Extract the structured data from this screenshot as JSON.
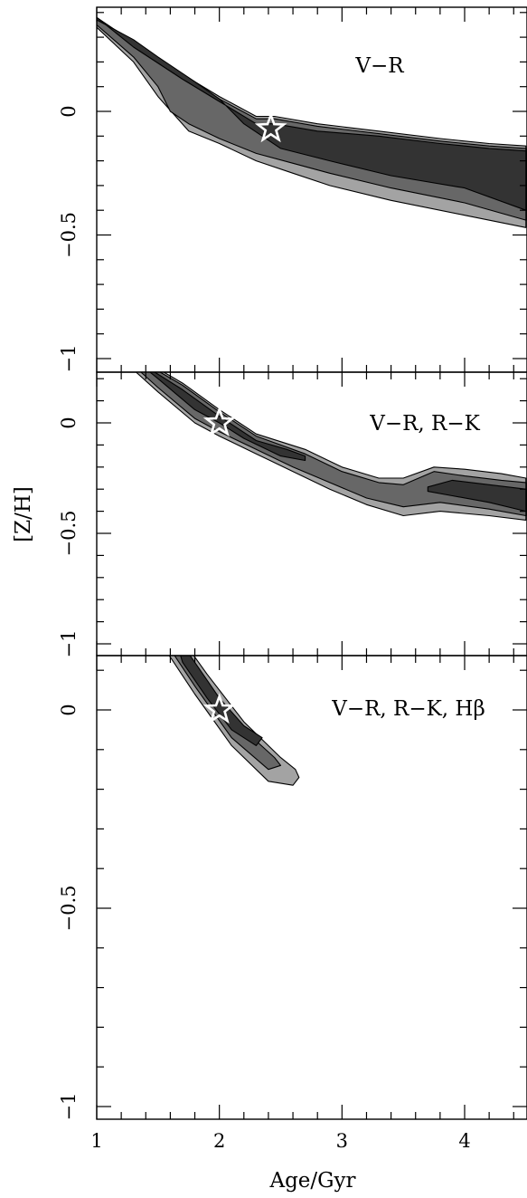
{
  "chart_data": {
    "type": "contour",
    "xlabel": "Age/Gyr",
    "ylabel": "[Z/H]",
    "xlim": [
      1,
      4.5
    ],
    "ylim": [
      -1,
      0.4
    ],
    "x_ticks": [
      "1",
      "2",
      "3",
      "4"
    ],
    "y_ticks": [
      "0",
      "−0.5",
      "−1"
    ],
    "colors": {
      "outer": "#a3a3a3",
      "middle": "#676767",
      "inner": "#333333",
      "star": "#ffffff"
    },
    "panels": [
      {
        "label": "V−R",
        "best_fit": {
          "x": 2.42,
          "y": -0.07
        },
        "contours": [
          {
            "level": "outer",
            "upper": [
              [
                1,
                0.38
              ],
              [
                1.3,
                0.28
              ],
              [
                1.7,
                0.15
              ],
              [
                2.0,
                0.06
              ],
              [
                2.3,
                -0.02
              ],
              [
                2.45,
                -0.02
              ],
              [
                2.8,
                -0.05
              ],
              [
                3.3,
                -0.08
              ],
              [
                3.8,
                -0.11
              ],
              [
                4.2,
                -0.13
              ],
              [
                4.5,
                -0.14
              ]
            ],
            "lower": [
              [
                4.5,
                -0.47
              ],
              [
                4.0,
                -0.42
              ],
              [
                3.4,
                -0.36
              ],
              [
                2.9,
                -0.3
              ],
              [
                2.6,
                -0.25
              ],
              [
                2.3,
                -0.2
              ],
              [
                2.0,
                -0.13
              ],
              [
                1.75,
                -0.08
              ],
              [
                1.5,
                0.06
              ],
              [
                1.3,
                0.2
              ],
              [
                1,
                0.34
              ]
            ]
          },
          {
            "level": "middle",
            "upper": [
              [
                1,
                0.38
              ],
              [
                1.3,
                0.27
              ],
              [
                1.7,
                0.14
              ],
              [
                2.0,
                0.05
              ],
              [
                2.3,
                -0.03
              ],
              [
                2.45,
                -0.03
              ],
              [
                2.8,
                -0.06
              ],
              [
                3.3,
                -0.09
              ],
              [
                3.8,
                -0.12
              ],
              [
                4.2,
                -0.14
              ],
              [
                4.5,
                -0.15
              ]
            ],
            "lower": [
              [
                4.5,
                -0.44
              ],
              [
                4.0,
                -0.37
              ],
              [
                3.4,
                -0.31
              ],
              [
                2.9,
                -0.25
              ],
              [
                2.6,
                -0.21
              ],
              [
                2.3,
                -0.17
              ],
              [
                2.0,
                -0.11
              ],
              [
                1.75,
                -0.05
              ],
              [
                1.6,
                0.0
              ],
              [
                1.5,
                0.1
              ],
              [
                1.3,
                0.22
              ],
              [
                1,
                0.35
              ]
            ]
          },
          {
            "level": "inner",
            "upper": [
              [
                1,
                0.38
              ],
              [
                1.3,
                0.26
              ],
              [
                1.7,
                0.13
              ],
              [
                2.0,
                0.04
              ],
              [
                2.3,
                -0.05
              ],
              [
                2.45,
                -0.05
              ],
              [
                2.8,
                -0.08
              ],
              [
                3.3,
                -0.1
              ],
              [
                3.8,
                -0.13
              ],
              [
                4.2,
                -0.15
              ],
              [
                4.5,
                -0.16
              ]
            ],
            "lower": [
              [
                4.5,
                -0.4
              ],
              [
                4.0,
                -0.31
              ],
              [
                3.4,
                -0.26
              ],
              [
                2.9,
                -0.2
              ],
              [
                2.5,
                -0.15
              ],
              [
                2.2,
                -0.05
              ],
              [
                2.0,
                0.05
              ],
              [
                1.8,
                0.12
              ],
              [
                1.5,
                0.22
              ],
              [
                1.3,
                0.29
              ],
              [
                1,
                0.37
              ]
            ]
          }
        ]
      },
      {
        "label": "V−R, R−K",
        "best_fit": {
          "x": 2.0,
          "y": 0.0
        },
        "contours": [
          {
            "level": "outer",
            "upper": [
              [
                1,
                0.4
              ],
              [
                1.3,
                0.31
              ],
              [
                1.7,
                0.18
              ],
              [
                2.0,
                0.06
              ],
              [
                2.3,
                -0.05
              ],
              [
                2.7,
                -0.12
              ],
              [
                3.0,
                -0.2
              ],
              [
                3.3,
                -0.25
              ],
              [
                3.5,
                -0.25
              ],
              [
                3.75,
                -0.2
              ],
              [
                4.0,
                -0.21
              ],
              [
                4.3,
                -0.23
              ],
              [
                4.5,
                -0.25
              ]
            ],
            "lower": [
              [
                4.5,
                -0.44
              ],
              [
                4.2,
                -0.42
              ],
              [
                3.8,
                -0.4
              ],
              [
                3.5,
                -0.42
              ],
              [
                3.2,
                -0.37
              ],
              [
                2.9,
                -0.3
              ],
              [
                2.6,
                -0.22
              ],
              [
                2.3,
                -0.14
              ],
              [
                2.0,
                -0.06
              ],
              [
                1.8,
                0.0
              ],
              [
                1.5,
                0.14
              ],
              [
                1.3,
                0.24
              ],
              [
                1,
                0.37
              ]
            ]
          },
          {
            "level": "middle",
            "upper": [
              [
                1,
                0.4
              ],
              [
                1.3,
                0.3
              ],
              [
                1.7,
                0.17
              ],
              [
                2.0,
                0.05
              ],
              [
                2.3,
                -0.06
              ],
              [
                2.7,
                -0.14
              ],
              [
                3.0,
                -0.22
              ],
              [
                3.3,
                -0.27
              ],
              [
                3.5,
                -0.28
              ],
              [
                3.75,
                -0.22
              ],
              [
                4.0,
                -0.24
              ],
              [
                4.3,
                -0.26
              ],
              [
                4.5,
                -0.27
              ]
            ],
            "lower": [
              [
                4.5,
                -0.42
              ],
              [
                4.2,
                -0.39
              ],
              [
                3.8,
                -0.36
              ],
              [
                3.5,
                -0.38
              ],
              [
                3.2,
                -0.34
              ],
              [
                2.9,
                -0.27
              ],
              [
                2.6,
                -0.2
              ],
              [
                2.3,
                -0.12
              ],
              [
                2.0,
                -0.04
              ],
              [
                1.8,
                0.02
              ],
              [
                1.5,
                0.16
              ],
              [
                1.3,
                0.26
              ],
              [
                1,
                0.38
              ]
            ]
          },
          {
            "level": "inner",
            "upper": [
              [
                1,
                0.4
              ],
              [
                1.3,
                0.29
              ],
              [
                1.7,
                0.15
              ],
              [
                2.0,
                0.03
              ],
              [
                2.3,
                -0.08
              ],
              [
                2.55,
                -0.12
              ],
              [
                2.7,
                -0.15
              ]
            ],
            "lower": [
              [
                2.7,
                -0.17
              ],
              [
                2.5,
                -0.15
              ],
              [
                2.2,
                -0.07
              ],
              [
                2.0,
                0.0
              ],
              [
                1.8,
                0.06
              ],
              [
                1.5,
                0.2
              ],
              [
                1.3,
                0.29
              ],
              [
                1,
                0.39
              ]
            ]
          },
          {
            "level": "inner",
            "upper": [
              [
                3.7,
                -0.29
              ],
              [
                3.9,
                -0.26
              ],
              [
                4.2,
                -0.28
              ],
              [
                4.5,
                -0.3
              ]
            ],
            "lower": [
              [
                4.5,
                -0.4
              ],
              [
                4.2,
                -0.36
              ],
              [
                3.9,
                -0.33
              ],
              [
                3.7,
                -0.31
              ]
            ]
          }
        ]
      },
      {
        "label": "V−R, R−K, Hβ",
        "best_fit": {
          "x": 2.0,
          "y": 0.0
        },
        "contours": [
          {
            "level": "outer",
            "upper": [
              [
                1.22,
                0.36
              ],
              [
                1.3,
                0.35
              ],
              [
                1.6,
                0.22
              ],
              [
                1.9,
                0.09
              ],
              [
                2.2,
                -0.03
              ],
              [
                2.5,
                -0.12
              ],
              [
                2.62,
                -0.15
              ],
              [
                2.65,
                -0.17
              ]
            ],
            "lower": [
              [
                2.65,
                -0.17
              ],
              [
                2.6,
                -0.19
              ],
              [
                2.4,
                -0.18
              ],
              [
                2.1,
                -0.09
              ],
              [
                1.8,
                0.04
              ],
              [
                1.5,
                0.18
              ],
              [
                1.3,
                0.3
              ],
              [
                1.22,
                0.36
              ]
            ]
          },
          {
            "level": "middle",
            "upper": [
              [
                1.32,
                0.32
              ],
              [
                1.6,
                0.2
              ],
              [
                1.9,
                0.07
              ],
              [
                2.2,
                -0.05
              ],
              [
                2.45,
                -0.12
              ],
              [
                2.5,
                -0.14
              ]
            ],
            "lower": [
              [
                2.5,
                -0.14
              ],
              [
                2.4,
                -0.15
              ],
              [
                2.1,
                -0.07
              ],
              [
                1.8,
                0.06
              ],
              [
                1.5,
                0.2
              ],
              [
                1.32,
                0.32
              ]
            ]
          },
          {
            "level": "inner",
            "upper": [
              [
                1.62,
                0.2
              ],
              [
                1.8,
                0.12
              ],
              [
                2.0,
                0.03
              ],
              [
                2.2,
                -0.04
              ],
              [
                2.35,
                -0.07
              ]
            ],
            "lower": [
              [
                2.35,
                -0.07
              ],
              [
                2.3,
                -0.09
              ],
              [
                2.1,
                -0.05
              ],
              [
                1.9,
                0.03
              ],
              [
                1.7,
                0.12
              ],
              [
                1.62,
                0.2
              ]
            ]
          }
        ]
      }
    ]
  }
}
